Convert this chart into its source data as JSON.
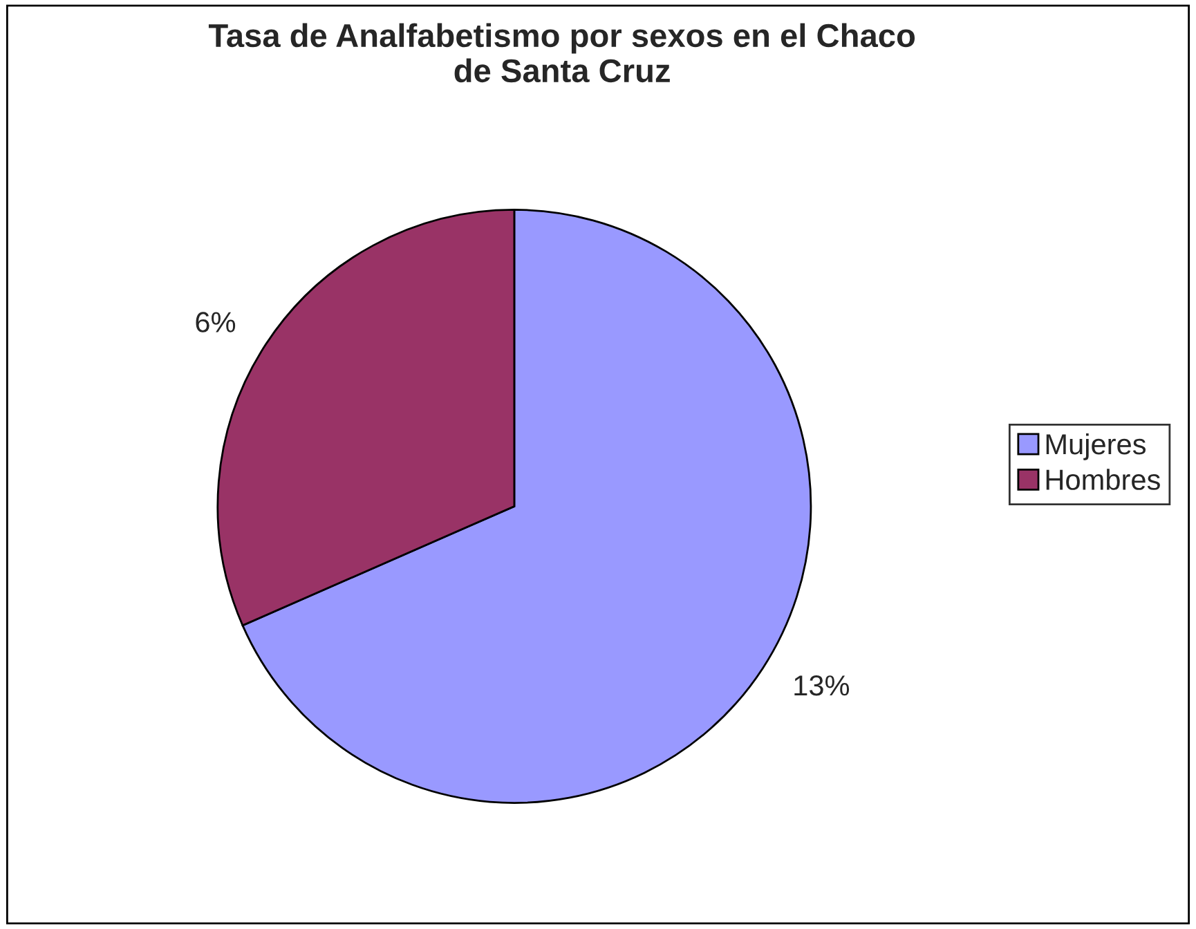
{
  "chart_data": {
    "type": "pie",
    "title": "Tasa de Analfabetismo por sexos en el Chaco\nde Santa Cruz",
    "categories": [
      "Mujeres",
      "Hombres"
    ],
    "values": [
      13,
      6
    ],
    "colors": [
      "#9999ff",
      "#993366"
    ],
    "value_labels": [
      "13%",
      "6%"
    ],
    "legend": "right"
  }
}
